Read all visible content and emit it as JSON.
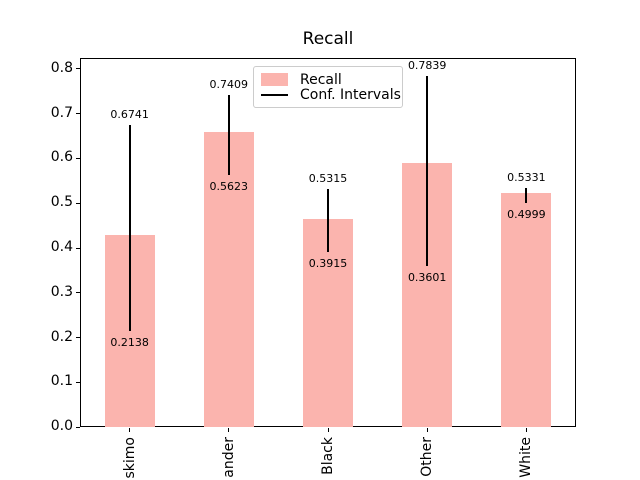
{
  "title": "Recall",
  "legend": {
    "items": [
      {
        "label": "Recall",
        "type": "patch",
        "color": "#fbb4ae"
      },
      {
        "label": "Conf. Intervals",
        "type": "line",
        "color": "#000000"
      }
    ]
  },
  "chart_data": {
    "type": "bar",
    "title": "Recall",
    "categories": [
      "skimo",
      "ander",
      "Black",
      "Other",
      "White"
    ],
    "series": [
      {
        "name": "Recall",
        "values": [
          0.429,
          0.659,
          0.465,
          0.59,
          0.522
        ]
      }
    ],
    "conf_intervals": {
      "upper": [
        0.6741,
        0.7409,
        0.5315,
        0.7839,
        0.5331
      ],
      "lower": [
        0.2138,
        0.5623,
        0.3915,
        0.3601,
        0.4999
      ]
    },
    "annotations": {
      "upper": [
        "0.6741",
        "0.7409",
        "0.5315",
        "0.7839",
        "0.5331"
      ],
      "lower": [
        "0.2138",
        "0.5623",
        "0.3915",
        "0.3601",
        "0.4999"
      ]
    },
    "yticks": [
      0.0,
      0.1,
      0.2,
      0.3,
      0.4,
      0.5,
      0.6,
      0.7,
      0.8
    ],
    "ylim": [
      0.0,
      0.825
    ],
    "xlabel": "",
    "ylabel": "",
    "bar_color": "#fbb4ae",
    "ci_color": "#000000",
    "grid": false,
    "legend_position": "upper center"
  }
}
